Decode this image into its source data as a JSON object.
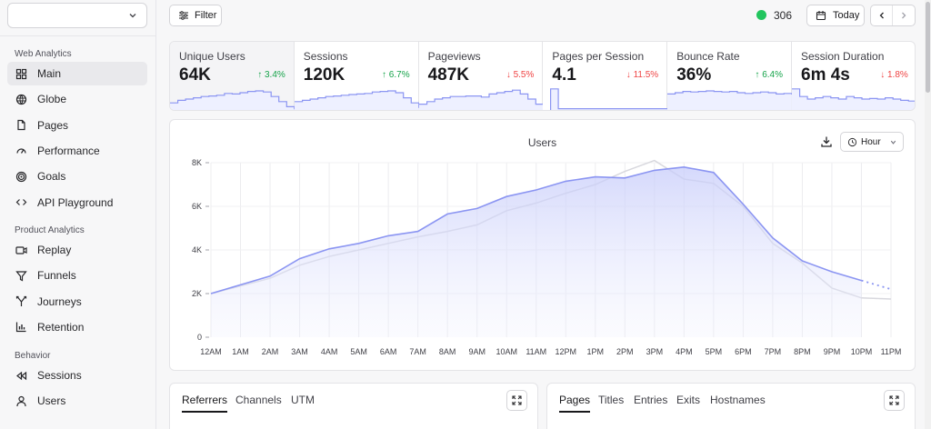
{
  "sidebar": {
    "site_select_value": "",
    "sections": [
      {
        "title": "Web Analytics",
        "items": [
          {
            "label": "Main",
            "icon": "layout-grid-icon",
            "active": true
          },
          {
            "label": "Globe",
            "icon": "globe-icon"
          },
          {
            "label": "Pages",
            "icon": "file-icon"
          },
          {
            "label": "Performance",
            "icon": "gauge-icon"
          },
          {
            "label": "Goals",
            "icon": "target-icon"
          },
          {
            "label": "API Playground",
            "icon": "code-icon"
          }
        ]
      },
      {
        "title": "Product Analytics",
        "items": [
          {
            "label": "Replay",
            "icon": "video-icon"
          },
          {
            "label": "Funnels",
            "icon": "funnel-icon"
          },
          {
            "label": "Journeys",
            "icon": "split-icon"
          },
          {
            "label": "Retention",
            "icon": "bar-chart-icon"
          }
        ]
      },
      {
        "title": "Behavior",
        "items": [
          {
            "label": "Sessions",
            "icon": "rewind-icon"
          },
          {
            "label": "Users",
            "icon": "user-icon"
          }
        ]
      }
    ]
  },
  "topbar": {
    "filter_label": "Filter",
    "live_count": "306",
    "today_label": "Today"
  },
  "stats": [
    {
      "label": "Unique Users",
      "value": "64K",
      "delta": "3.4%",
      "direction": "up",
      "active": true
    },
    {
      "label": "Sessions",
      "value": "120K",
      "delta": "6.7%",
      "direction": "up"
    },
    {
      "label": "Pageviews",
      "value": "487K",
      "delta": "5.5%",
      "direction": "down"
    },
    {
      "label": "Pages per Session",
      "value": "4.1",
      "delta": "11.5%",
      "direction": "down"
    },
    {
      "label": "Bounce Rate",
      "value": "36%",
      "delta": "6.4%",
      "direction": "up"
    },
    {
      "label": "Session Duration",
      "value": "6m 4s",
      "delta": "1.8%",
      "direction": "down"
    }
  ],
  "chart": {
    "title": "Users",
    "interval_label": "Hour"
  },
  "chart_data": {
    "type": "area",
    "title": "Users",
    "categories": [
      "12AM",
      "1AM",
      "2AM",
      "3AM",
      "4AM",
      "5AM",
      "6AM",
      "7AM",
      "8AM",
      "9AM",
      "10AM",
      "11AM",
      "12PM",
      "1PM",
      "2PM",
      "3PM",
      "4PM",
      "5PM",
      "6PM",
      "7PM",
      "8PM",
      "9PM",
      "10PM",
      "11PM"
    ],
    "ylim": [
      0,
      8000
    ],
    "yticks": [
      "0",
      "2K",
      "4K",
      "6K",
      "8K"
    ],
    "grid": true,
    "series": [
      {
        "values": [
          2000,
          2400,
          2800,
          3600,
          4050,
          4300,
          4650,
          4850,
          5650,
          5900,
          6450,
          6750,
          7150,
          7350,
          7300,
          7650,
          7800,
          7550,
          6100,
          4550,
          3500,
          3000,
          2600,
          2200
        ]
      },
      {
        "values": [
          2000,
          2350,
          2700,
          3300,
          3700,
          4000,
          4300,
          4600,
          4850,
          5150,
          5800,
          6150,
          6600,
          7000,
          7600,
          8100,
          7250,
          7050,
          6000,
          4300,
          3400,
          2250,
          1800,
          1750
        ]
      }
    ]
  },
  "bottom_left": {
    "tabs": [
      "Referrers",
      "Channels",
      "UTM"
    ],
    "active": 0
  },
  "bottom_right": {
    "tabs": [
      "Pages",
      "Titles",
      "Entries",
      "Exits",
      "Hostnames"
    ],
    "active": 0
  }
}
